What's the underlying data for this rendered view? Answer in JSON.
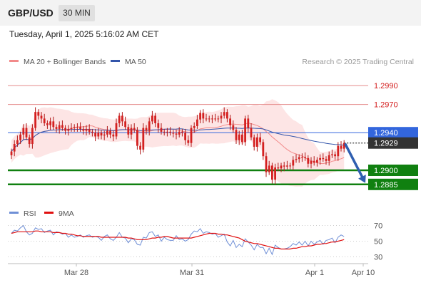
{
  "header": {
    "symbol": "GBP/USD",
    "timeframe": "30 MIN",
    "datetime": "Tuesday, April 1, 2025 5:16:02 AM CET"
  },
  "legend": {
    "ma20": "MA 20 + Bollinger Bands",
    "ma50": "MA 50",
    "credit": "Research © 2025 Trading Central",
    "rsi": "RSI",
    "ma9": "9MA"
  },
  "colors": {
    "up": "#d42020",
    "down": "#d42020",
    "ma20": "#f28a8a",
    "ma50": "#3355aa",
    "band_fill": "#fde0e0",
    "resistance": "#e58a8a",
    "pivot": "#3366dd",
    "support": "#108010",
    "arrow": "#2f5fb0",
    "rsi": "#6f8fd6",
    "rsi_ma": "#e01010",
    "current": "#333333"
  },
  "chart_data": [
    {
      "type": "candlestick",
      "ylim": [
        1.2875,
        1.3
      ],
      "x_ticks": [
        "Mar 28",
        "Mar 31",
        "Apr 1",
        "Apr 10"
      ],
      "levels": [
        {
          "label": "1.2990",
          "value": 1.299,
          "kind": "resistance"
        },
        {
          "label": "1.2970",
          "value": 1.297,
          "kind": "resistance"
        },
        {
          "label": "1.2940",
          "value": 1.294,
          "kind": "pivot"
        },
        {
          "label": "1.2929",
          "value": 1.2929,
          "kind": "current"
        },
        {
          "label": "1.2900",
          "value": 1.29,
          "kind": "support"
        },
        {
          "label": "1.2885",
          "value": 1.2885,
          "kind": "support"
        }
      ],
      "close": [
        1.292,
        1.2928,
        1.2932,
        1.2938,
        1.2945,
        1.2935,
        1.2928,
        1.2945,
        1.2962,
        1.2958,
        1.2955,
        1.295,
        1.2948,
        1.2952,
        1.2946,
        1.2944,
        1.2948,
        1.2945,
        1.2942,
        1.2944,
        1.2945,
        1.2946,
        1.2946,
        1.2944,
        1.2942,
        1.2944,
        1.2941,
        1.294,
        1.2936,
        1.294,
        1.2937,
        1.2938,
        1.2942,
        1.2938,
        1.2936,
        1.295,
        1.2958,
        1.2952,
        1.2946,
        1.2938,
        1.2945,
        1.2943,
        1.2926,
        1.2922,
        1.2945,
        1.2942,
        1.2952,
        1.2958,
        1.295,
        1.2945,
        1.2941,
        1.2941,
        1.2941,
        1.294,
        1.2939,
        1.2938,
        1.2941,
        1.294,
        1.2932,
        1.2929,
        1.2945,
        1.2947,
        1.2954,
        1.2961,
        1.2955,
        1.2955,
        1.2955,
        1.2955,
        1.2955,
        1.2955,
        1.2958,
        1.2962,
        1.2955,
        1.2948,
        1.2943,
        1.2932,
        1.2938,
        1.293,
        1.2955,
        1.2945,
        1.2935,
        1.2925,
        1.2935,
        1.293,
        1.2915,
        1.2898,
        1.2905,
        1.289,
        1.2903,
        1.2902,
        1.2905,
        1.2904,
        1.2905,
        1.2905,
        1.2911,
        1.2912,
        1.2914,
        1.2914,
        1.2913,
        1.2907,
        1.291,
        1.2908,
        1.2911,
        1.2913,
        1.2912,
        1.291,
        1.2916,
        1.2917,
        1.2915,
        1.2926,
        1.2923,
        1.2929
      ],
      "rsi": {
        "ylim": [
          25,
          75
        ],
        "ticks": [
          70,
          50,
          30
        ],
        "rsi": [
          60,
          64,
          63,
          67,
          70,
          62,
          58,
          60,
          67,
          65,
          66,
          61,
          63,
          64,
          58,
          62,
          61,
          59,
          60,
          55,
          58,
          55,
          56,
          58,
          55,
          57,
          58,
          55,
          56,
          55,
          51,
          56,
          58,
          53,
          51,
          55,
          61,
          55,
          54,
          48,
          53,
          52,
          46,
          45,
          55,
          54,
          61,
          62,
          56,
          58,
          50,
          55,
          52,
          51,
          51,
          57,
          52,
          53,
          50,
          52,
          59,
          63,
          62,
          66,
          60,
          62,
          61,
          59,
          60,
          55,
          57,
          59,
          49,
          44,
          51,
          42,
          46,
          43,
          53,
          49,
          45,
          39,
          46,
          42,
          42,
          34,
          41,
          33,
          45,
          42,
          40,
          40,
          41,
          43,
          47,
          45,
          49,
          45,
          50,
          44,
          50,
          46,
          49,
          51,
          46,
          51,
          52,
          54,
          48,
          55,
          58,
          56
        ],
        "ma": [
          60,
          61,
          62,
          62,
          62,
          62,
          62,
          62,
          63,
          63,
          62,
          62,
          62,
          62,
          61,
          61,
          61,
          60,
          60,
          59,
          59,
          58,
          57,
          57,
          56,
          56,
          56,
          56,
          56,
          56,
          55,
          55,
          55,
          55,
          55,
          55,
          55,
          55,
          55,
          54,
          54,
          53,
          52,
          52,
          52,
          52,
          53,
          54,
          54,
          55,
          55,
          56,
          56,
          55,
          54,
          54,
          54,
          54,
          54,
          54,
          54,
          55,
          56,
          57,
          58,
          59,
          60,
          60,
          60,
          59,
          59,
          58,
          58,
          57,
          56,
          55,
          54,
          52,
          50,
          49,
          48,
          47,
          47,
          46,
          45,
          44,
          43,
          42,
          41,
          41,
          40,
          40,
          40,
          40,
          41,
          41,
          42,
          43,
          43,
          44,
          44,
          45,
          46,
          46,
          47,
          47,
          48,
          49,
          49,
          50,
          51,
          52
        ]
      }
    }
  ]
}
